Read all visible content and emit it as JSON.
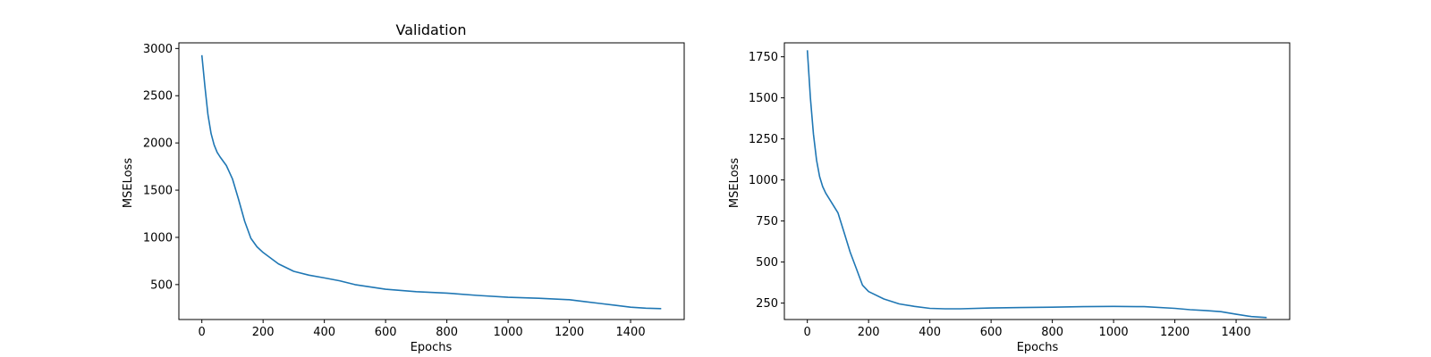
{
  "chart_data": [
    {
      "type": "line",
      "title": "Validation",
      "xlabel": "Epochs",
      "ylabel": "MSELoss",
      "xlim": [
        -75,
        1575
      ],
      "ylim": [
        130,
        3060
      ],
      "xticks": [
        0,
        200,
        400,
        600,
        800,
        1000,
        1200,
        1400
      ],
      "yticks": [
        500,
        1000,
        1500,
        2000,
        2500,
        3000
      ],
      "grid": false,
      "line_color": "#1f77b4",
      "series": [
        {
          "x": [
            0,
            10,
            20,
            30,
            40,
            50,
            60,
            80,
            100,
            120,
            140,
            160,
            180,
            200,
            250,
            300,
            350,
            400,
            450,
            500,
            600,
            700,
            800,
            900,
            1000,
            1100,
            1200,
            1250,
            1300,
            1350,
            1400,
            1450,
            1500
          ],
          "values": [
            2930,
            2600,
            2300,
            2100,
            1980,
            1900,
            1850,
            1760,
            1620,
            1400,
            1170,
            990,
            900,
            840,
            720,
            640,
            600,
            570,
            540,
            500,
            450,
            425,
            410,
            385,
            365,
            355,
            340,
            320,
            300,
            280,
            260,
            250,
            245
          ]
        }
      ]
    },
    {
      "type": "line",
      "title": "",
      "xlabel": "Epochs",
      "ylabel": "MSELoss",
      "xlim": [
        -75,
        1575
      ],
      "ylim": [
        150,
        1835
      ],
      "xticks": [
        0,
        200,
        400,
        600,
        800,
        1000,
        1200,
        1400
      ],
      "yticks": [
        250,
        500,
        750,
        1000,
        1250,
        1500,
        1750
      ],
      "grid": false,
      "line_color": "#1f77b4",
      "series": [
        {
          "x": [
            0,
            10,
            20,
            30,
            40,
            50,
            60,
            80,
            100,
            120,
            140,
            160,
            180,
            200,
            250,
            300,
            350,
            400,
            450,
            500,
            600,
            700,
            800,
            900,
            1000,
            1100,
            1200,
            1250,
            1300,
            1350,
            1400,
            1450,
            1500
          ],
          "values": [
            1790,
            1500,
            1280,
            1120,
            1020,
            960,
            920,
            860,
            800,
            680,
            560,
            460,
            360,
            320,
            275,
            245,
            230,
            218,
            215,
            215,
            220,
            223,
            225,
            228,
            230,
            228,
            218,
            210,
            205,
            198,
            182,
            168,
            162
          ]
        }
      ]
    }
  ]
}
